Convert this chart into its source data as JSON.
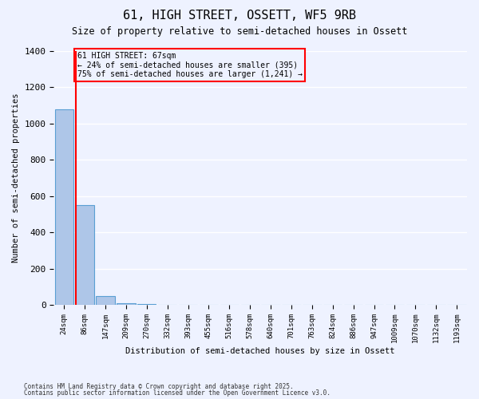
{
  "title": "61, HIGH STREET, OSSETT, WF5 9RB",
  "subtitle": "Size of property relative to semi-detached houses in Ossett",
  "xlabel": "Distribution of semi-detached houses by size in Ossett",
  "ylabel": "Number of semi-detached properties",
  "bar_values": [
    1080,
    550,
    50,
    8,
    4,
    2,
    2,
    1,
    1,
    1,
    1,
    1,
    0,
    0,
    0,
    0,
    0,
    0,
    0,
    0
  ],
  "bin_labels": [
    "24sqm",
    "86sqm",
    "147sqm",
    "209sqm",
    "270sqm",
    "332sqm",
    "393sqm",
    "455sqm",
    "516sqm",
    "578sqm",
    "640sqm",
    "701sqm",
    "763sqm",
    "824sqm",
    "886sqm",
    "947sqm",
    "1009sqm",
    "1070sqm",
    "1132sqm",
    "1193sqm"
  ],
  "bar_color": "#aec6e8",
  "bar_edge_color": "#5a9fd4",
  "vline_color": "red",
  "annotation_text": "61 HIGH STREET: 67sqm\n← 24% of semi-detached houses are smaller (395)\n75% of semi-detached houses are larger (1,241) →",
  "annotation_box_color": "red",
  "ylim": [
    0,
    1400
  ],
  "yticks": [
    0,
    200,
    400,
    600,
    800,
    1000,
    1200,
    1400
  ],
  "background_color": "#eef2ff",
  "grid_color": "#ffffff",
  "footer_line1": "Contains HM Land Registry data © Crown copyright and database right 2025.",
  "footer_line2": "Contains public sector information licensed under the Open Government Licence v3.0."
}
